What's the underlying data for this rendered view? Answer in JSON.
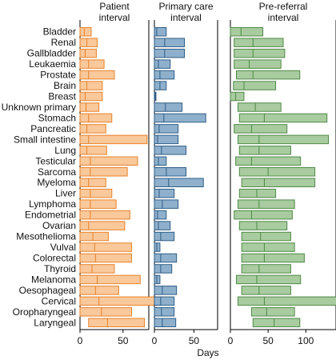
{
  "chart_data": {
    "type": "bar",
    "xlabel": "Days",
    "xlim": [
      0,
      80
    ],
    "x_ticks": [
      "0",
      "50"
    ],
    "panels": [
      {
        "title": "Patient\ninterval",
        "color": "#f4a460",
        "edge": "#e8832a",
        "fill": "#f9c89b",
        "xlim": [
          0,
          80
        ],
        "ticks": [
          0,
          50
        ]
      },
      {
        "title": "Primary care\ninterval",
        "color": "#4a7aa8",
        "edge": "#2f5d86",
        "fill": "#8fb0cc",
        "xlim": [
          0,
          80
        ],
        "ticks": [
          0,
          50
        ]
      },
      {
        "title": "Pre-referral\ninterval",
        "color": "#7aab6f",
        "edge": "#4f8a46",
        "fill": "#a9cba0",
        "xlim": [
          0,
          140
        ],
        "ticks": [
          0,
          50,
          100
        ]
      }
    ],
    "categories": [
      "Bladder",
      "Renal",
      "Gallbladder",
      "Leukaemia",
      "Prostate",
      "Brain",
      "Breast",
      "Unknown primary",
      "Stomach",
      "Pancreatic",
      "Small intestine",
      "Lung",
      "Testicular",
      "Sarcoma",
      "Myeloma",
      "Liver",
      "Lymphoma",
      "Endometrial",
      "Ovarian",
      "Mesothelioma",
      "Vulval",
      "Colorectal",
      "Thyroid",
      "Melanoma",
      "Oesophageal",
      "Cervical",
      "Oropharyngeal",
      "Laryngeal"
    ],
    "series": [
      {
        "name": "Patient interval",
        "values": [
          [
            0,
            5,
            13
          ],
          [
            0,
            8,
            20
          ],
          [
            0,
            6,
            19
          ],
          [
            0,
            10,
            28
          ],
          [
            0,
            10,
            40
          ],
          [
            0,
            8,
            26
          ],
          [
            0,
            6,
            26
          ],
          [
            0,
            7,
            22
          ],
          [
            0,
            10,
            37
          ],
          [
            0,
            8,
            30
          ],
          [
            0,
            10,
            78
          ],
          [
            0,
            8,
            31
          ],
          [
            0,
            12,
            67
          ],
          [
            0,
            12,
            55
          ],
          [
            0,
            10,
            30
          ],
          [
            0,
            12,
            37
          ],
          [
            0,
            12,
            42
          ],
          [
            0,
            12,
            58
          ],
          [
            0,
            10,
            52
          ],
          [
            0,
            15,
            33
          ],
          [
            0,
            17,
            60
          ],
          [
            0,
            18,
            60
          ],
          [
            0,
            14,
            40
          ],
          [
            0,
            20,
            70
          ],
          [
            0,
            18,
            45
          ],
          [
            0,
            22,
            95
          ],
          [
            0,
            25,
            60
          ],
          [
            10,
            32,
            75
          ]
        ]
      },
      {
        "name": "Primary care interval",
        "values": [
          [
            0,
            3,
            15
          ],
          [
            0,
            13,
            38
          ],
          [
            0,
            13,
            38
          ],
          [
            0,
            5,
            20
          ],
          [
            0,
            7,
            25
          ],
          [
            0,
            7,
            15
          ],
          [
            0,
            1,
            2
          ],
          [
            0,
            14,
            35
          ],
          [
            0,
            12,
            65
          ],
          [
            0,
            6,
            30
          ],
          [
            0,
            4,
            30
          ],
          [
            0,
            9,
            40
          ],
          [
            0,
            5,
            15
          ],
          [
            0,
            15,
            40
          ],
          [
            0,
            18,
            62
          ],
          [
            0,
            6,
            25
          ],
          [
            0,
            10,
            30
          ],
          [
            0,
            4,
            15
          ],
          [
            0,
            5,
            20
          ],
          [
            0,
            8,
            25
          ],
          [
            0,
            3,
            7
          ],
          [
            0,
            8,
            28
          ],
          [
            0,
            8,
            22
          ],
          [
            0,
            3,
            7
          ],
          [
            0,
            10,
            28
          ],
          [
            0,
            8,
            25
          ],
          [
            0,
            9,
            25
          ],
          [
            0,
            10,
            27
          ]
        ]
      },
      {
        "name": "Pre-referral interval",
        "values": [
          [
            0,
            14,
            43
          ],
          [
            5,
            30,
            70
          ],
          [
            5,
            30,
            72
          ],
          [
            5,
            25,
            67
          ],
          [
            8,
            30,
            92
          ],
          [
            4,
            18,
            60
          ],
          [
            0,
            7,
            18
          ],
          [
            10,
            33,
            67
          ],
          [
            12,
            45,
            128
          ],
          [
            5,
            28,
            75
          ],
          [
            10,
            38,
            130
          ],
          [
            12,
            38,
            80
          ],
          [
            7,
            28,
            93
          ],
          [
            12,
            50,
            112
          ],
          [
            15,
            45,
            112
          ],
          [
            12,
            35,
            60
          ],
          [
            10,
            38,
            85
          ],
          [
            5,
            28,
            82
          ],
          [
            12,
            35,
            75
          ],
          [
            15,
            40,
            80
          ],
          [
            15,
            45,
            85
          ],
          [
            15,
            45,
            98
          ],
          [
            15,
            38,
            80
          ],
          [
            8,
            35,
            93
          ],
          [
            15,
            38,
            80
          ],
          [
            10,
            45,
            145
          ],
          [
            28,
            48,
            85
          ],
          [
            30,
            58,
            92
          ]
        ]
      }
    ]
  }
}
